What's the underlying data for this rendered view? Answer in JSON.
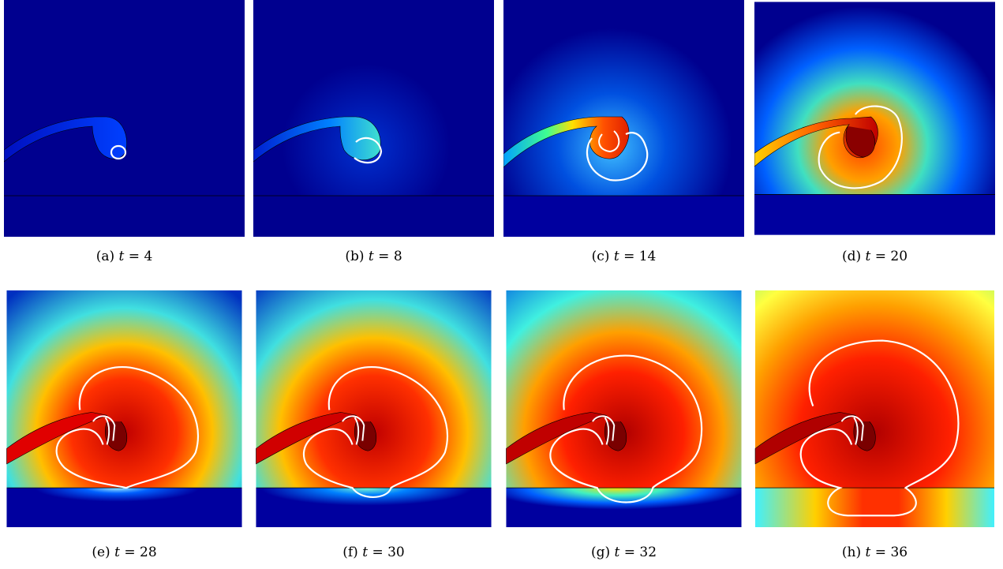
{
  "panels": [
    {
      "tag": "(a)",
      "var": "t",
      "eq": "=",
      "value": "4"
    },
    {
      "tag": "(b)",
      "var": "t",
      "eq": "=",
      "value": "8"
    },
    {
      "tag": "(c)",
      "var": "t",
      "eq": "=",
      "value": "14"
    },
    {
      "tag": "(d)",
      "var": "t",
      "eq": "=",
      "value": "20"
    },
    {
      "tag": "(e)",
      "var": "t",
      "eq": "=",
      "value": "28"
    },
    {
      "tag": "(f)",
      "var": "t",
      "eq": "=",
      "value": "30"
    },
    {
      "tag": "(g)",
      "var": "t",
      "eq": "=",
      "value": "32"
    },
    {
      "tag": "(h)",
      "var": "t",
      "eq": "=",
      "value": "36"
    }
  ],
  "colors": {
    "background_low": "#00008f",
    "interface_line": "#ffffff",
    "lesion_dark": "#7a0000"
  }
}
